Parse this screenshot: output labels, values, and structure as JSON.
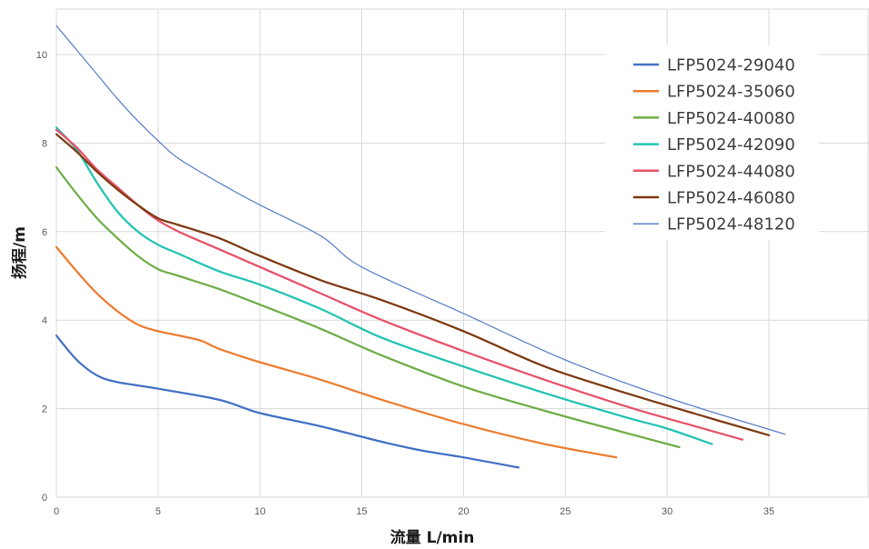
{
  "chart_data": {
    "type": "line",
    "title": "",
    "xlabel": "流量 L/min",
    "ylabel": "扬程/m",
    "xlim": [
      0,
      36
    ],
    "ylim": [
      0,
      11
    ],
    "xticks": [
      "0",
      "5",
      "10",
      "15",
      "20",
      "25",
      "30",
      "35"
    ],
    "yticks": [
      "0",
      "2",
      "4",
      "6",
      "8",
      "10"
    ],
    "grid": true,
    "legend_position": "top-right",
    "series": [
      {
        "name": "LFP5024-29040",
        "color": "#4472c4",
        "x": [
          0,
          1,
          2,
          3,
          5,
          8,
          10,
          13,
          16,
          18,
          20,
          22.7
        ],
        "y": [
          3.65,
          3.1,
          2.75,
          2.6,
          2.45,
          2.2,
          1.9,
          1.6,
          1.25,
          1.05,
          0.9,
          0.67
        ]
      },
      {
        "name": "LFP5024-35060",
        "color": "#ed7d31",
        "x": [
          0,
          1,
          2,
          3,
          4,
          5,
          7,
          8,
          10,
          13,
          16,
          20,
          24,
          27.5
        ],
        "y": [
          5.65,
          5.1,
          4.6,
          4.2,
          3.9,
          3.75,
          3.55,
          3.35,
          3.05,
          2.65,
          2.2,
          1.65,
          1.2,
          0.9
        ]
      },
      {
        "name": "LFP5024-40080",
        "color": "#70ad47",
        "x": [
          0,
          1,
          2,
          3,
          4,
          5,
          6,
          8,
          10,
          13,
          16,
          20,
          24,
          28,
          30.6
        ],
        "y": [
          7.45,
          6.85,
          6.3,
          5.85,
          5.45,
          5.15,
          5.0,
          4.7,
          4.35,
          3.8,
          3.2,
          2.5,
          1.95,
          1.45,
          1.13
        ]
      },
      {
        "name": "LFP5024-42090",
        "color": "#22c3b3",
        "x": [
          0,
          1,
          2,
          3,
          4,
          5,
          6,
          8,
          10,
          13,
          16,
          20,
          24,
          28,
          30,
          32.2
        ],
        "y": [
          8.35,
          7.85,
          7.1,
          6.45,
          6.0,
          5.7,
          5.5,
          5.1,
          4.8,
          4.25,
          3.6,
          2.95,
          2.35,
          1.8,
          1.55,
          1.2
        ]
      },
      {
        "name": "LFP5024-44080",
        "color": "#e8526a",
        "x": [
          0,
          1,
          2,
          3,
          4,
          5,
          6,
          8,
          10,
          13,
          16,
          20,
          24,
          28,
          31,
          33.7
        ],
        "y": [
          8.3,
          7.9,
          7.4,
          7.0,
          6.6,
          6.25,
          6.0,
          5.6,
          5.2,
          4.6,
          4.0,
          3.3,
          2.65,
          2.05,
          1.65,
          1.3
        ]
      },
      {
        "name": "LFP5024-46080",
        "color": "#7e3a12",
        "x": [
          0,
          1,
          2,
          3,
          4,
          5,
          6,
          8,
          10,
          13,
          16,
          20,
          24,
          28,
          32,
          35
        ],
        "y": [
          8.2,
          7.8,
          7.35,
          6.95,
          6.6,
          6.3,
          6.15,
          5.85,
          5.45,
          4.9,
          4.45,
          3.75,
          2.95,
          2.35,
          1.8,
          1.4
        ]
      },
      {
        "name": "LFP5024-48120",
        "color": "#5b7fc7",
        "x": [
          0,
          1,
          2,
          3,
          4,
          5,
          6,
          8,
          10,
          13,
          15,
          20,
          25,
          30,
          35.8
        ],
        "y": [
          10.65,
          10.1,
          9.55,
          9.0,
          8.5,
          8.05,
          7.65,
          7.1,
          6.6,
          5.9,
          5.2,
          4.15,
          3.1,
          2.25,
          1.42
        ]
      }
    ]
  }
}
